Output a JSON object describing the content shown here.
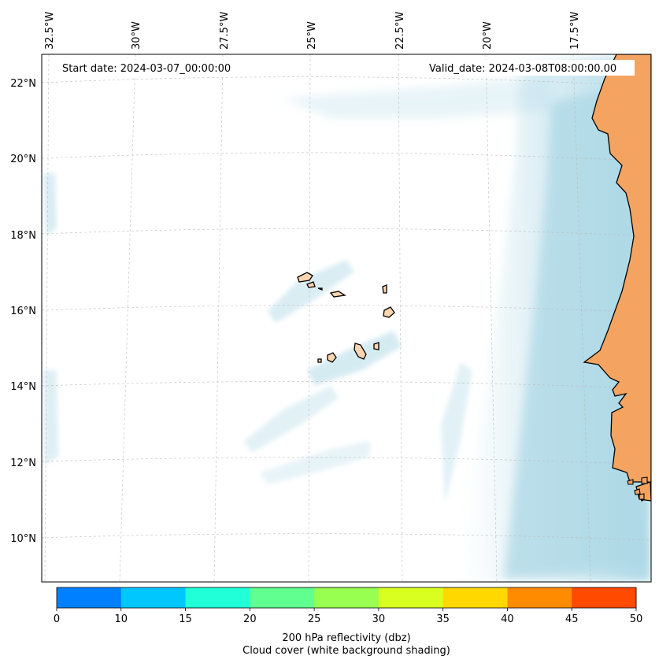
{
  "map": {
    "start_date_label": "Start date: 2024-03-07_00:00:00",
    "valid_date_label": "Valid_date: 2024-03-08T08:00:00.00",
    "lon_labels": [
      "32.5°W",
      "30°W",
      "27.5°W",
      "25°W",
      "22.5°W",
      "20°W",
      "17.5°W"
    ],
    "lat_labels": [
      "22°N",
      "20°N",
      "18°N",
      "16°N",
      "14°N",
      "12°N",
      "10°N"
    ],
    "land_color": "#f4a460",
    "cloud_color": "#add8e6",
    "coast_color": "#000000"
  },
  "colorbar": {
    "bins": [
      {
        "from": 0,
        "to": 10,
        "color": "#0080ff"
      },
      {
        "from": 10,
        "to": 15,
        "color": "#00c8ff"
      },
      {
        "from": 15,
        "to": 20,
        "color": "#20ffd8"
      },
      {
        "from": 20,
        "to": 25,
        "color": "#60ff90"
      },
      {
        "from": 25,
        "to": 30,
        "color": "#98ff50"
      },
      {
        "from": 30,
        "to": 35,
        "color": "#d8ff20"
      },
      {
        "from": 35,
        "to": 40,
        "color": "#ffd800"
      },
      {
        "from": 40,
        "to": 45,
        "color": "#ff8c00"
      },
      {
        "from": 45,
        "to": 50,
        "color": "#ff4a00"
      }
    ],
    "tick_labels": [
      "0",
      "10",
      "15",
      "20",
      "25",
      "30",
      "35",
      "40",
      "45",
      "50"
    ],
    "label_line1": "200 hPa reflectivity (dbz)",
    "label_line2": "Cloud cover (white background shading)"
  }
}
